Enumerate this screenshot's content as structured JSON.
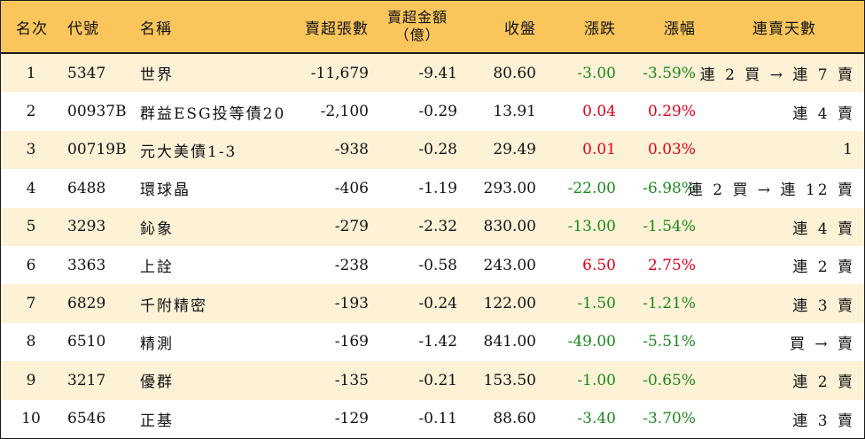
{
  "headers": {
    "rank": "名次",
    "code": "代號",
    "name": "名稱",
    "net_lots": "賣超張數",
    "net_amount_line1": "賣超金額",
    "net_amount_line2": "（億）",
    "close": "收盤",
    "change": "漲跌",
    "pct": "漲幅",
    "streak": "連賣天數"
  },
  "rows": [
    {
      "rank": "1",
      "code": "5347",
      "name": "世界",
      "net_lots": "-11,679",
      "net_amount": "-9.41",
      "close": "80.60",
      "change": "-3.00",
      "pct": "-3.59%",
      "streak": "連 2 買 → 連 7 賣",
      "trend": "down"
    },
    {
      "rank": "2",
      "code": "00937B",
      "name": "群益ESG投等債20",
      "net_lots": "-2,100",
      "net_amount": "-0.29",
      "close": "13.91",
      "change": "0.04",
      "pct": "0.29%",
      "streak": "連 4 賣",
      "trend": "up"
    },
    {
      "rank": "3",
      "code": "00719B",
      "name": "元大美債1-3",
      "net_lots": "-938",
      "net_amount": "-0.28",
      "close": "29.49",
      "change": "0.01",
      "pct": "0.03%",
      "streak": "1",
      "trend": "up"
    },
    {
      "rank": "4",
      "code": "6488",
      "name": "環球晶",
      "net_lots": "-406",
      "net_amount": "-1.19",
      "close": "293.00",
      "change": "-22.00",
      "pct": "-6.98%",
      "streak": "連 2 買 → 連 12 賣",
      "trend": "down"
    },
    {
      "rank": "5",
      "code": "3293",
      "name": "鈊象",
      "net_lots": "-279",
      "net_amount": "-2.32",
      "close": "830.00",
      "change": "-13.00",
      "pct": "-1.54%",
      "streak": "連 4 賣",
      "trend": "down"
    },
    {
      "rank": "6",
      "code": "3363",
      "name": "上詮",
      "net_lots": "-238",
      "net_amount": "-0.58",
      "close": "243.00",
      "change": "6.50",
      "pct": "2.75%",
      "streak": "連 2 賣",
      "trend": "up"
    },
    {
      "rank": "7",
      "code": "6829",
      "name": "千附精密",
      "net_lots": "-193",
      "net_amount": "-0.24",
      "close": "122.00",
      "change": "-1.50",
      "pct": "-1.21%",
      "streak": "連 3 賣",
      "trend": "down"
    },
    {
      "rank": "8",
      "code": "6510",
      "name": "精測",
      "net_lots": "-169",
      "net_amount": "-1.42",
      "close": "841.00",
      "change": "-49.00",
      "pct": "-5.51%",
      "streak": "買 → 賣",
      "trend": "down"
    },
    {
      "rank": "9",
      "code": "3217",
      "name": "優群",
      "net_lots": "-135",
      "net_amount": "-0.21",
      "close": "153.50",
      "change": "-1.00",
      "pct": "-0.65%",
      "streak": "連 2 賣",
      "trend": "down"
    },
    {
      "rank": "10",
      "code": "6546",
      "name": "正基",
      "net_lots": "-129",
      "net_amount": "-0.11",
      "close": "88.60",
      "change": "-3.40",
      "pct": "-3.70%",
      "streak": "連 3 賣",
      "trend": "down"
    }
  ],
  "colors": {
    "header_bg": "#fac65c",
    "odd_row_bg": "#fdf1d6",
    "even_row_bg": "#ffffff",
    "up": "#e0001b",
    "down": "#1b8a1b"
  }
}
